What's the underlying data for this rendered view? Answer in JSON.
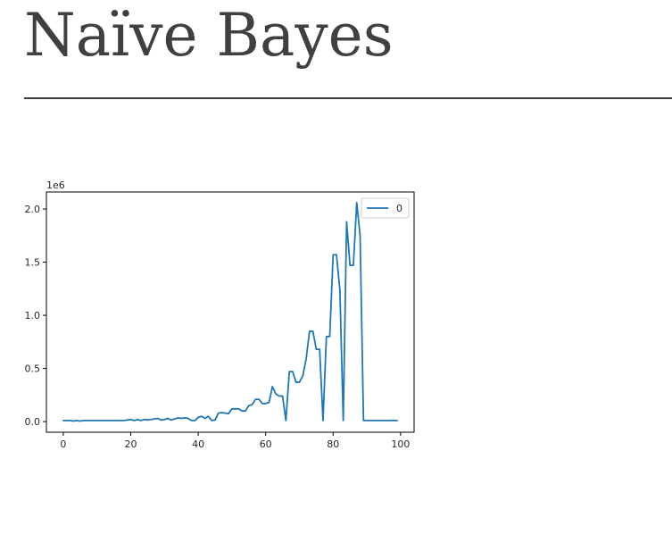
{
  "page": {
    "title": "Naïve Bayes"
  },
  "chart_data": {
    "type": "line",
    "title": "",
    "xlabel": "",
    "ylabel": "",
    "y_offset_label": "1e6",
    "y_scale": 1000000,
    "xlim": [
      -5,
      104
    ],
    "ylim": [
      -0.1,
      2.16
    ],
    "xticks": [
      0,
      20,
      40,
      60,
      80,
      100
    ],
    "xtick_labels": [
      "0",
      "20",
      "40",
      "60",
      "80",
      "100"
    ],
    "yticks": [
      0.0,
      0.5,
      1.0,
      1.5,
      2.0
    ],
    "ytick_labels": [
      "0.0",
      "0.5",
      "1.0",
      "1.5",
      "2.0"
    ],
    "grid": false,
    "legend": "top-right",
    "series": [
      {
        "name": "0",
        "color": "#1f77b4",
        "x": [
          0,
          1,
          2,
          3,
          4,
          5,
          6,
          7,
          8,
          9,
          10,
          11,
          12,
          13,
          14,
          15,
          16,
          17,
          18,
          19,
          20,
          21,
          22,
          23,
          24,
          25,
          26,
          27,
          28,
          29,
          30,
          31,
          32,
          33,
          34,
          35,
          36,
          37,
          38,
          39,
          40,
          41,
          42,
          43,
          44,
          45,
          46,
          47,
          48,
          49,
          50,
          51,
          52,
          53,
          54,
          55,
          56,
          57,
          58,
          59,
          60,
          61,
          62,
          63,
          64,
          65,
          66,
          67,
          68,
          69,
          70,
          71,
          72,
          73,
          74,
          75,
          76,
          77,
          78,
          79,
          80,
          81,
          82,
          83,
          84,
          85,
          86,
          87,
          88,
          89,
          90,
          91,
          92,
          93,
          94,
          95,
          96,
          97,
          98,
          99
        ],
        "values": [
          0.01,
          0.01,
          0.01,
          0.005,
          0.01,
          0.005,
          0.01,
          0.01,
          0.01,
          0.01,
          0.01,
          0.01,
          0.01,
          0.01,
          0.01,
          0.01,
          0.01,
          0.01,
          0.01,
          0.015,
          0.02,
          0.01,
          0.02,
          0.01,
          0.02,
          0.015,
          0.02,
          0.025,
          0.03,
          0.015,
          0.02,
          0.03,
          0.015,
          0.025,
          0.035,
          0.03,
          0.035,
          0.03,
          0.01,
          0.01,
          0.04,
          0.05,
          0.03,
          0.05,
          0.01,
          0.015,
          0.08,
          0.085,
          0.08,
          0.075,
          0.12,
          0.12,
          0.12,
          0.1,
          0.1,
          0.15,
          0.16,
          0.21,
          0.21,
          0.17,
          0.17,
          0.18,
          0.33,
          0.26,
          0.24,
          0.24,
          0.01,
          0.47,
          0.47,
          0.37,
          0.37,
          0.43,
          0.59,
          0.85,
          0.85,
          0.68,
          0.68,
          0.01,
          0.8,
          0.8,
          1.57,
          1.57,
          1.24,
          0.01,
          1.88,
          1.47,
          1.47,
          2.06,
          1.75,
          0.01,
          0.01,
          0.01,
          0.01,
          0.01,
          0.01,
          0.01,
          0.01,
          0.01,
          0.01,
          0.01
        ]
      }
    ]
  }
}
